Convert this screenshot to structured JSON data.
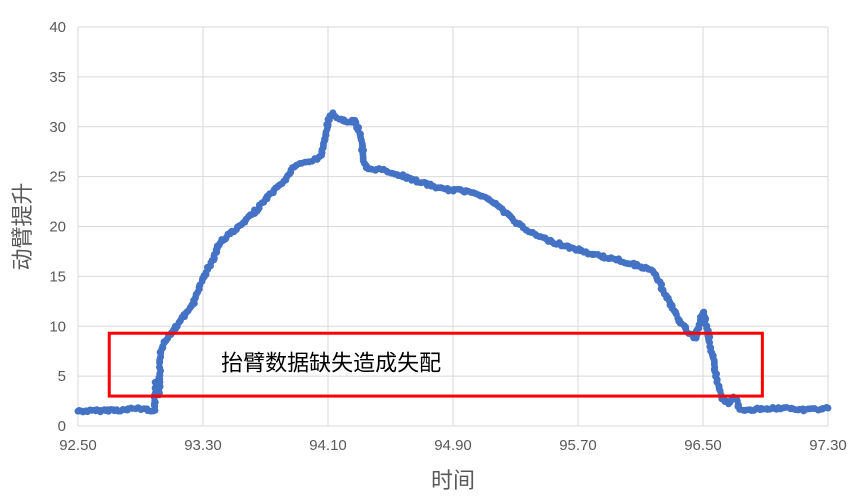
{
  "chart_data": {
    "type": "scatter",
    "title": "",
    "xlabel": "时间",
    "ylabel": "动臂提升",
    "xlim": [
      92.5,
      97.3
    ],
    "ylim": [
      0,
      40
    ],
    "x_ticks": [
      "92.50",
      "93.30",
      "94.10",
      "94.90",
      "95.70",
      "96.50",
      "97.30"
    ],
    "y_ticks": [
      "0",
      "5",
      "10",
      "15",
      "20",
      "25",
      "30",
      "35",
      "40"
    ],
    "grid": true,
    "legend": "none",
    "series": [
      {
        "color": "#4472C4",
        "points": [
          [
            92.5,
            1.5
          ],
          [
            92.6,
            1.5
          ],
          [
            92.7,
            1.6
          ],
          [
            92.8,
            1.6
          ],
          [
            92.88,
            1.8
          ],
          [
            92.95,
            1.6
          ],
          [
            92.99,
            1.6
          ],
          [
            93.0,
            4.5
          ],
          [
            93.02,
            3.0
          ],
          [
            93.03,
            7.5
          ],
          [
            93.05,
            8.5
          ],
          [
            93.08,
            9.0
          ],
          [
            93.12,
            9.8
          ],
          [
            93.16,
            10.6
          ],
          [
            93.2,
            11.5
          ],
          [
            93.24,
            12.3
          ],
          [
            93.28,
            14.0
          ],
          [
            93.32,
            15.5
          ],
          [
            93.36,
            16.5
          ],
          [
            93.4,
            18.2
          ],
          [
            93.45,
            19.0
          ],
          [
            93.5,
            19.6
          ],
          [
            93.55,
            20.2
          ],
          [
            93.6,
            21.0
          ],
          [
            93.65,
            21.8
          ],
          [
            93.7,
            22.7
          ],
          [
            93.75,
            23.5
          ],
          [
            93.8,
            24.2
          ],
          [
            93.85,
            25.2
          ],
          [
            93.88,
            26.0
          ],
          [
            93.95,
            26.4
          ],
          [
            94.0,
            26.6
          ],
          [
            94.05,
            27.0
          ],
          [
            94.08,
            28.5
          ],
          [
            94.1,
            30.5
          ],
          [
            94.13,
            31.3
          ],
          [
            94.17,
            30.8
          ],
          [
            94.21,
            30.5
          ],
          [
            94.27,
            30.6
          ],
          [
            94.31,
            29.0
          ],
          [
            94.33,
            26.5
          ],
          [
            94.35,
            25.8
          ],
          [
            94.45,
            25.7
          ],
          [
            94.55,
            25.2
          ],
          [
            94.62,
            24.8
          ],
          [
            94.7,
            24.4
          ],
          [
            94.78,
            24.0
          ],
          [
            94.85,
            23.7
          ],
          [
            94.95,
            23.6
          ],
          [
            95.05,
            23.4
          ],
          [
            95.15,
            22.5
          ],
          [
            95.25,
            21.2
          ],
          [
            95.35,
            19.8
          ],
          [
            95.45,
            19.0
          ],
          [
            95.55,
            18.4
          ],
          [
            95.65,
            17.9
          ],
          [
            95.75,
            17.4
          ],
          [
            95.85,
            17.0
          ],
          [
            95.95,
            16.7
          ],
          [
            96.05,
            16.2
          ],
          [
            96.15,
            15.8
          ],
          [
            96.2,
            15.0
          ],
          [
            96.25,
            13.5
          ],
          [
            96.3,
            12.0
          ],
          [
            96.35,
            10.5
          ],
          [
            96.4,
            9.5
          ],
          [
            96.45,
            8.8
          ],
          [
            96.48,
            10.5
          ],
          [
            96.5,
            11.5
          ],
          [
            96.53,
            9.5
          ],
          [
            96.56,
            7.0
          ],
          [
            96.59,
            4.5
          ],
          [
            96.62,
            2.8
          ],
          [
            96.66,
            2.2
          ],
          [
            96.7,
            3.0
          ],
          [
            96.74,
            1.6
          ],
          [
            96.85,
            1.7
          ],
          [
            97.0,
            1.8
          ],
          [
            97.15,
            1.6
          ],
          [
            97.3,
            1.8
          ]
        ]
      }
    ],
    "annotation": {
      "text": "抬臂数据缺失造成失配",
      "box_color": "#FF0000",
      "x_range": [
        92.7,
        96.88
      ],
      "y_range": [
        3.0,
        9.3
      ]
    }
  }
}
